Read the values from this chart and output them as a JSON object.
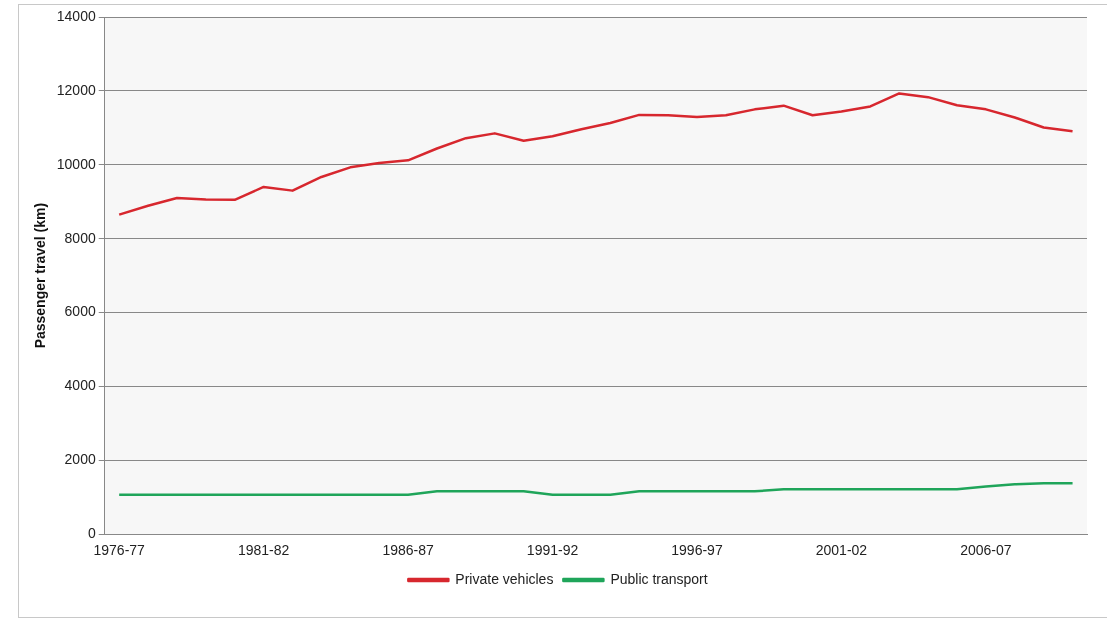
{
  "chart_data": {
    "type": "line",
    "ylabel": "Passenger travel (km)",
    "categories": [
      "1976-77",
      null,
      null,
      null,
      null,
      "1981-82",
      null,
      null,
      null,
      null,
      "1986-87",
      null,
      null,
      null,
      null,
      "1991-92",
      null,
      null,
      null,
      null,
      "1996-97",
      null,
      null,
      null,
      null,
      "2001-02",
      null,
      null,
      null,
      null,
      "2006-07",
      null,
      null,
      null
    ],
    "series": [
      {
        "name": "Private vehicles",
        "color": "#d7272e",
        "values": [
          8650,
          8890,
          9100,
          9060,
          9050,
          9400,
          9300,
          9670,
          9930,
          10050,
          10120,
          10440,
          10720,
          10850,
          10650,
          10770,
          10960,
          11130,
          11350,
          11340,
          11290,
          11340,
          11500,
          11600,
          11340,
          11440,
          11580,
          11930,
          11830,
          11610,
          11500,
          11280,
          11010,
          10910
        ]
      },
      {
        "name": "Public transport",
        "color": "#1fa55a",
        "values": [
          1070,
          1070,
          1070,
          1070,
          1070,
          1070,
          1070,
          1070,
          1070,
          1070,
          1070,
          1160,
          1160,
          1160,
          1160,
          1070,
          1070,
          1070,
          1160,
          1160,
          1160,
          1160,
          1160,
          1220,
          1220,
          1220,
          1220,
          1220,
          1220,
          1220,
          1290,
          1350,
          1380,
          1380
        ]
      }
    ],
    "ylim": [
      0,
      14000
    ],
    "yticks": [
      0,
      2000,
      4000,
      6000,
      8000,
      10000,
      12000,
      14000
    ],
    "grid": "y",
    "legend": "bottom",
    "marker": "none",
    "line_style": "solid"
  }
}
